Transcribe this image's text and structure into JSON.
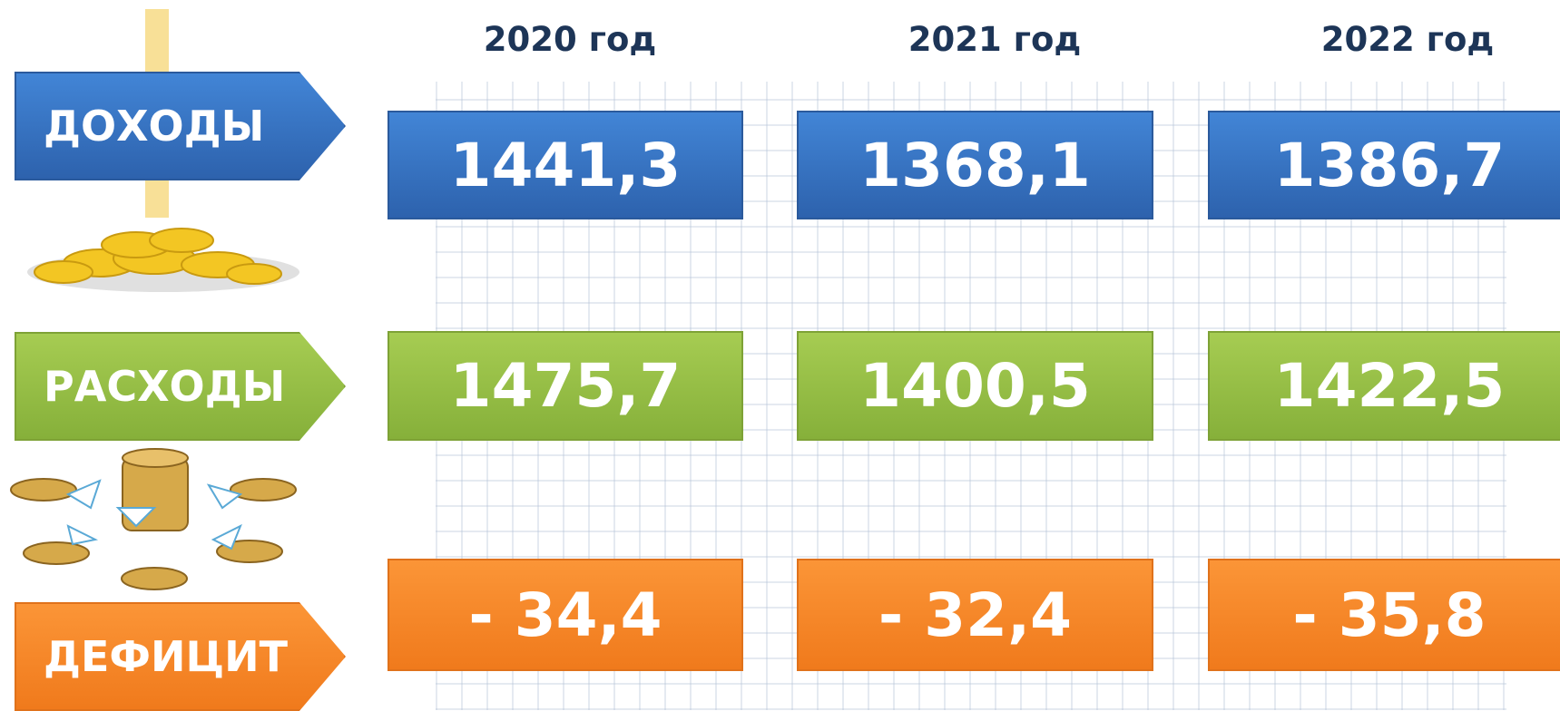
{
  "years": [
    "2020 год",
    "2021 год",
    "2022 год"
  ],
  "rows": [
    {
      "label": "ДОХОДЫ",
      "values": [
        "1441,3",
        "1368,1",
        "1386,7"
      ]
    },
    {
      "label": "РАСХОДЫ",
      "values": [
        "1475,7",
        "1400,5",
        "1422,5"
      ]
    },
    {
      "label": "ДЕФИЦИТ",
      "values": [
        "- 34,4",
        "- 32,4",
        "- 35,8"
      ]
    }
  ]
}
